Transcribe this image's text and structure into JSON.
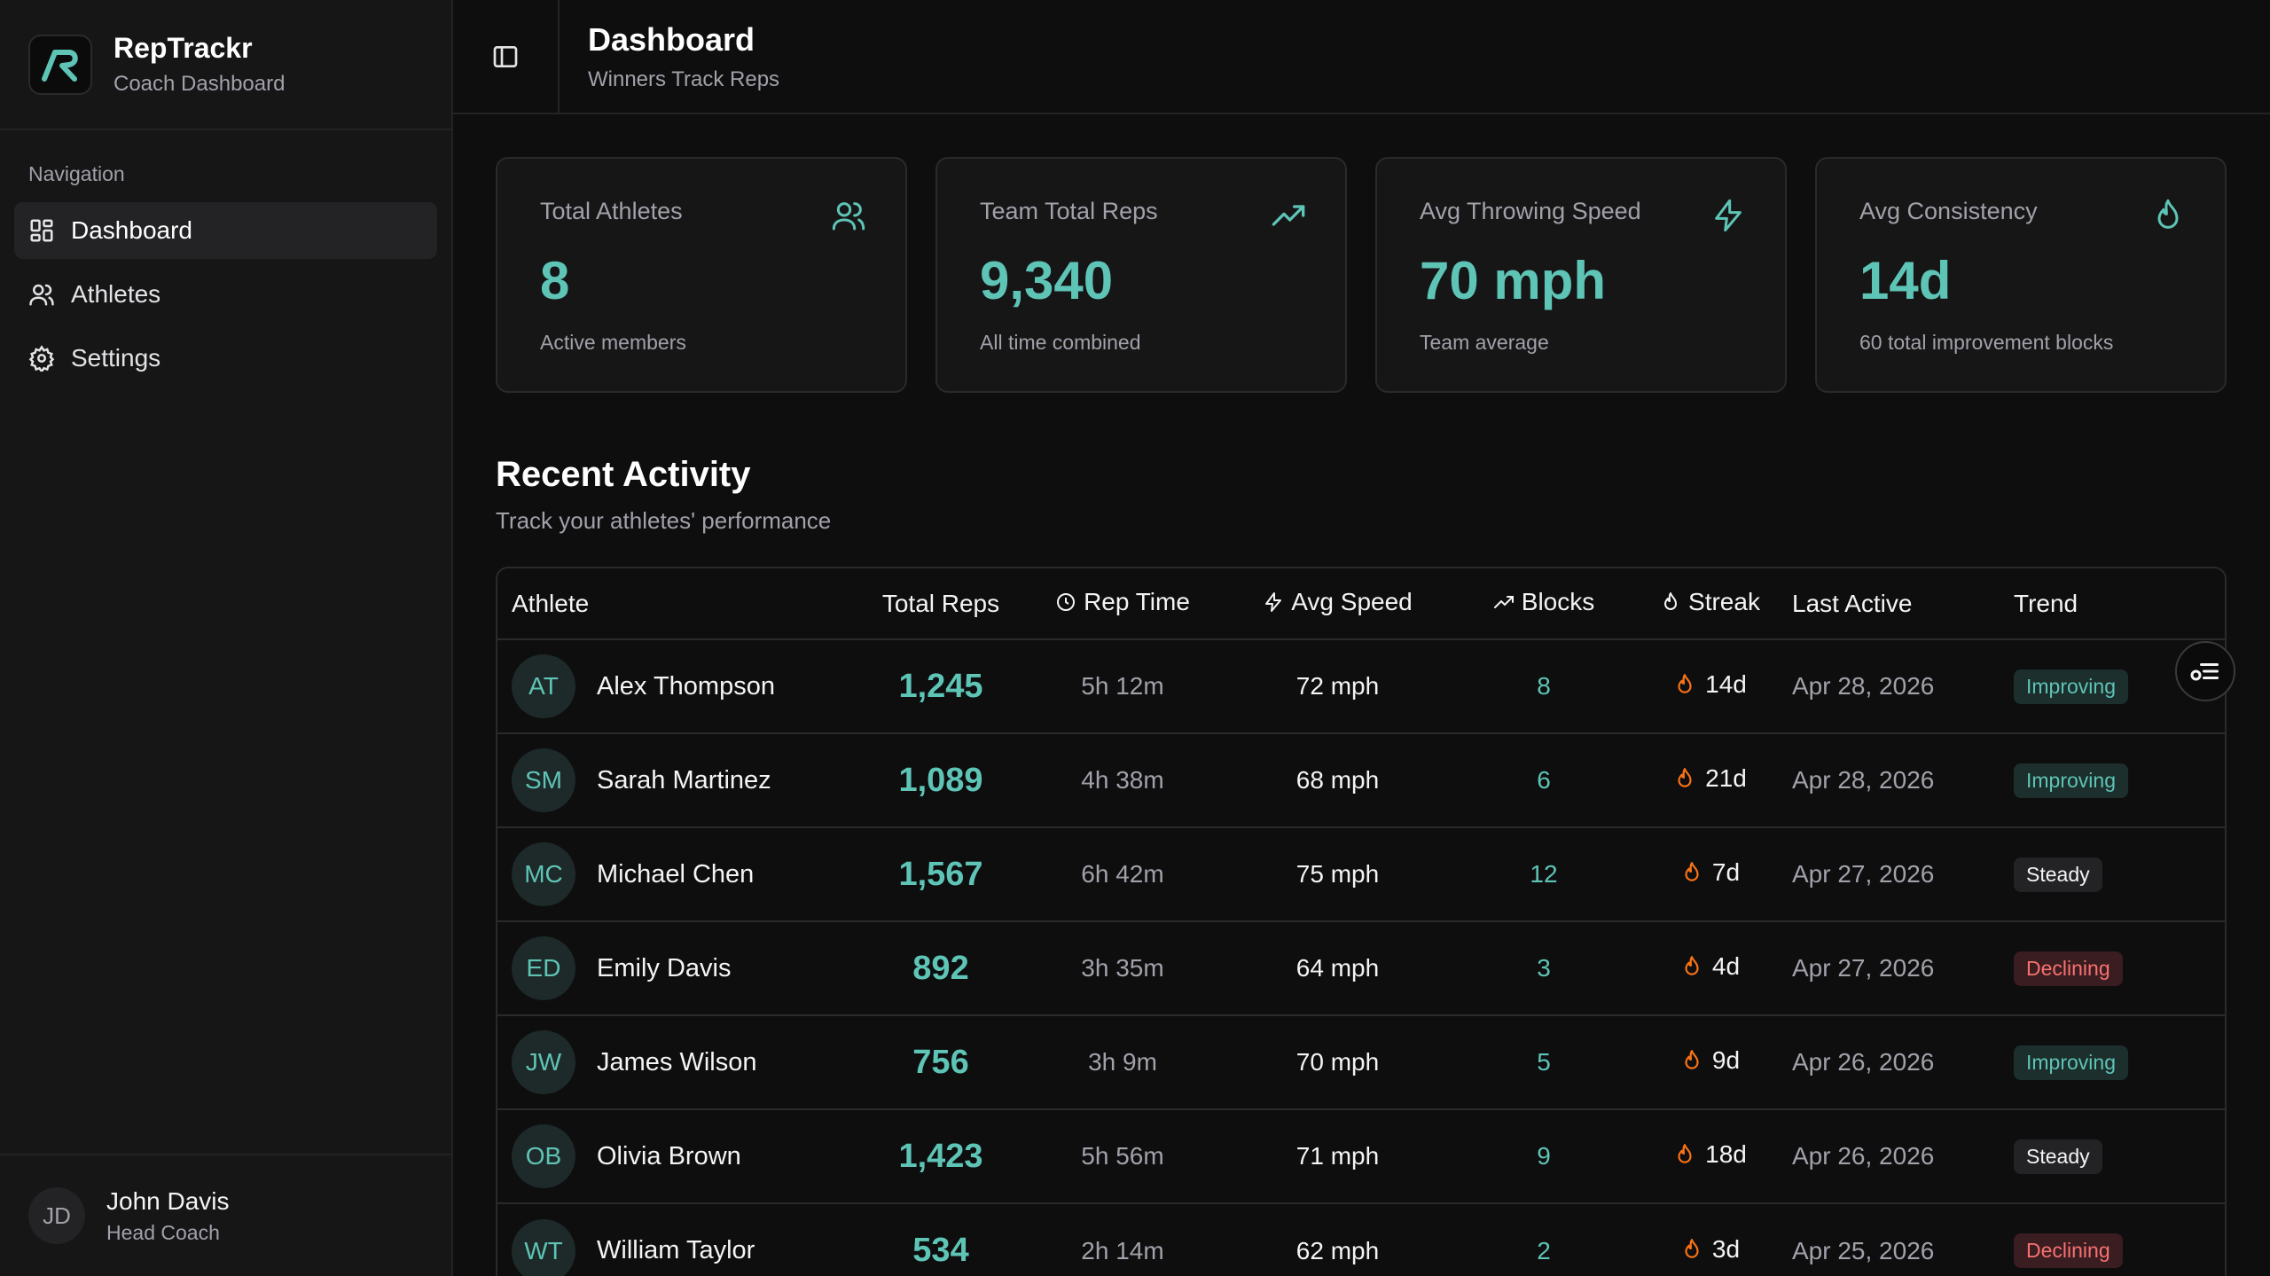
{
  "brand": {
    "title": "RepTrackr",
    "subtitle": "Coach Dashboard"
  },
  "nav": {
    "label": "Navigation",
    "items": [
      {
        "label": "Dashboard",
        "icon": "dashboard-icon",
        "active": true
      },
      {
        "label": "Athletes",
        "icon": "users-icon"
      },
      {
        "label": "Settings",
        "icon": "gear-icon"
      }
    ]
  },
  "user": {
    "initials": "JD",
    "name": "John Davis",
    "role": "Head Coach"
  },
  "header": {
    "title": "Dashboard",
    "subtitle": "Winners Track Reps"
  },
  "stats": [
    {
      "label": "Total Athletes",
      "value": "8",
      "sub": "Active members",
      "icon": "users-icon"
    },
    {
      "label": "Team Total Reps",
      "value": "9,340",
      "sub": "All time combined",
      "icon": "trending-up-icon"
    },
    {
      "label": "Avg Throwing Speed",
      "value": "70 mph",
      "sub": "Team average",
      "icon": "lightning-icon"
    },
    {
      "label": "Avg Consistency",
      "value": "14d",
      "sub": "60 total improvement blocks",
      "icon": "flame-icon"
    }
  ],
  "activity": {
    "title": "Recent Activity",
    "subtitle": "Track your athletes' performance",
    "columns": [
      "Athlete",
      "Total Reps",
      "Rep Time",
      "Avg Speed",
      "Blocks",
      "Streak",
      "Last Active",
      "Trend"
    ],
    "rows": [
      {
        "initials": "AT",
        "name": "Alex Thompson",
        "reps": "1,245",
        "time": "5h 12m",
        "speed": "72 mph",
        "blocks": "8",
        "streak": "14d",
        "last": "Apr 28, 2026",
        "trend": "Improving"
      },
      {
        "initials": "SM",
        "name": "Sarah Martinez",
        "reps": "1,089",
        "time": "4h 38m",
        "speed": "68 mph",
        "blocks": "6",
        "streak": "21d",
        "last": "Apr 28, 2026",
        "trend": "Improving"
      },
      {
        "initials": "MC",
        "name": "Michael Chen",
        "reps": "1,567",
        "time": "6h 42m",
        "speed": "75 mph",
        "blocks": "12",
        "streak": "7d",
        "last": "Apr 27, 2026",
        "trend": "Steady"
      },
      {
        "initials": "ED",
        "name": "Emily Davis",
        "reps": "892",
        "time": "3h 35m",
        "speed": "64 mph",
        "blocks": "3",
        "streak": "4d",
        "last": "Apr 27, 2026",
        "trend": "Declining"
      },
      {
        "initials": "JW",
        "name": "James Wilson",
        "reps": "756",
        "time": "3h 9m",
        "speed": "70 mph",
        "blocks": "5",
        "streak": "9d",
        "last": "Apr 26, 2026",
        "trend": "Improving"
      },
      {
        "initials": "OB",
        "name": "Olivia Brown",
        "reps": "1,423",
        "time": "5h 56m",
        "speed": "71 mph",
        "blocks": "9",
        "streak": "18d",
        "last": "Apr 26, 2026",
        "trend": "Steady"
      },
      {
        "initials": "WT",
        "name": "William Taylor",
        "reps": "534",
        "time": "2h 14m",
        "speed": "62 mph",
        "blocks": "2",
        "streak": "3d",
        "last": "Apr 25, 2026",
        "trend": "Declining"
      }
    ]
  },
  "colors": {
    "accent": "#5ec4b6",
    "flame": "#f97316",
    "declining": "#f87171"
  }
}
